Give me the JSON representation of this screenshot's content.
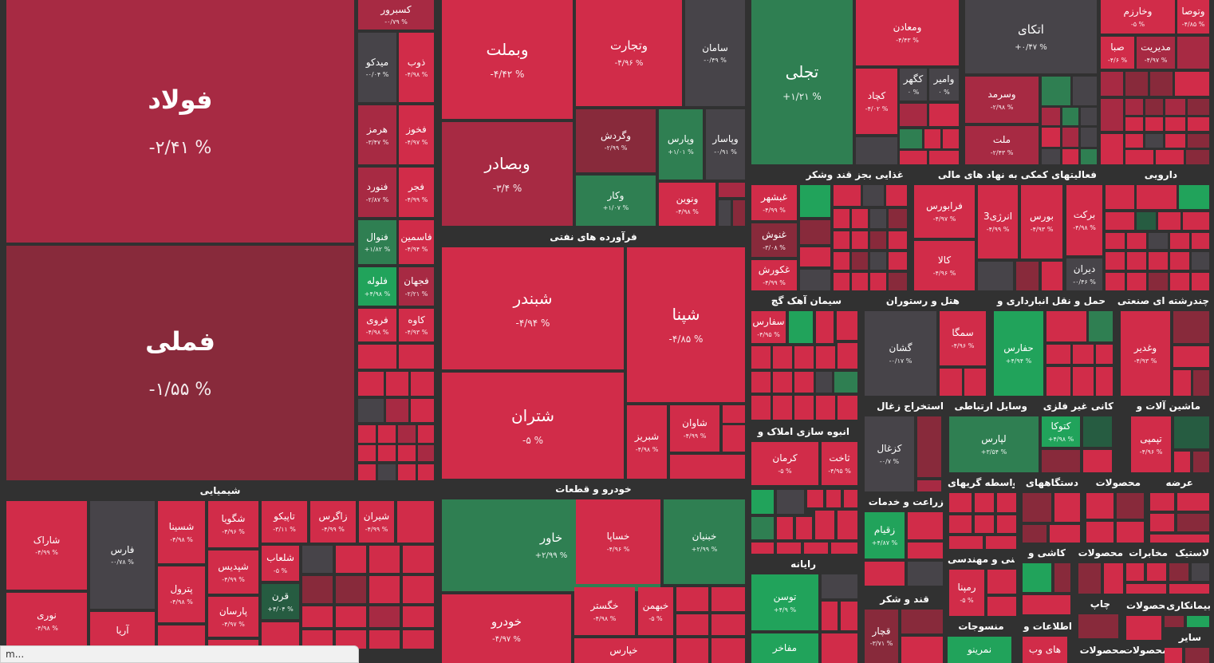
{
  "sectors": {
    "metals": "",
    "chemicals": "شیمیایی",
    "refinery": "فرآورده های نفتی",
    "auto": "خودرو و قطعات",
    "food": "غذایی بجز قند وشکر",
    "financial": "فعالیتهای کمکی به نهاد های مالی",
    "pharma": "دارویی",
    "cement": "سیمان آهک گچ",
    "hotel": "هتل و رستوران",
    "transport": "حمل و نقل انبارداری و",
    "multi": "چندرشته ای صنعتی",
    "mining_coal": "استخراج زغال",
    "telecom": "وسایل ارتباطی",
    "nonmetal": "کانی غیر فلزی",
    "machinery": "ماشین آلات و",
    "construction": "انبوه سازی املاک و",
    "agriculture": "زراعت و خدمات",
    "brokers": "واسطه گریهای",
    "devices": "دستگاههای",
    "products_a": "محصولات",
    "supply": "عرضه",
    "computer": "رایانه",
    "engineering": "فنی و مهندسی",
    "tiles": "کاشی و",
    "products_b": "محصولات",
    "comm": "مخابرات",
    "plastic": "لاستیک",
    "sugar": "قند و شکر",
    "textile": "منسوجات",
    "info": "اطلاعات و",
    "print": "چاپ",
    "products_c": "محصولات",
    "medical": "بیمانکاری",
    "products_d": "محصولات",
    "products_e": "محصولات",
    "other": "سایر"
  },
  "tiles": {
    "folad": {
      "name": "فولاد",
      "pct": "-۲/۴۱ %"
    },
    "fameli": {
      "name": "فملی",
      "pct": "-۱/۵۵ %"
    },
    "kasbarvar": {
      "name": "کسبرور",
      "pct": "-۰/۷۹ %"
    },
    "mideko": {
      "name": "میدکو",
      "pct": "-۰/۰۴ %"
    },
    "zob": {
      "name": "ذوب",
      "pct": "-۴/۹۸ %"
    },
    "hormoz": {
      "name": "هرمز",
      "pct": "-۳/۴۷ %"
    },
    "fakhuz": {
      "name": "فخوز",
      "pct": "-۴/۹۷ %"
    },
    "fanvard": {
      "name": "فنورد",
      "pct": "-۲/۸۷ %"
    },
    "fajr": {
      "name": "فجر",
      "pct": "-۴/۹۹ %"
    },
    "fanval": {
      "name": "فنوال",
      "pct": "+۱/۸۲ %"
    },
    "fasmin": {
      "name": "فاسمین",
      "pct": "-۴/۹۴ %"
    },
    "falule": {
      "name": "فلوله",
      "pct": "+۴/۹۸ %"
    },
    "fajahan": {
      "name": "فجهان",
      "pct": "-۲/۲۱ %"
    },
    "farvi": {
      "name": "فروی",
      "pct": "-۴/۹۸ %"
    },
    "kave": {
      "name": "کاوه",
      "pct": "-۴/۹۳ %"
    },
    "vabemellat": {
      "name": "وبملت",
      "pct": "-۴/۴۲ %"
    },
    "vatejarat": {
      "name": "وتجارت",
      "pct": "-۴/۹۶ %"
    },
    "saman": {
      "name": "سامان",
      "pct": "-۰/۴۹ %"
    },
    "tajalli": {
      "name": "تجلی",
      "pct": "+۱/۲۱ %"
    },
    "vabsader": {
      "name": "وبصادر",
      "pct": "-۳/۴ %"
    },
    "vagardesh": {
      "name": "وگردش",
      "pct": "-۲/۹۹ %"
    },
    "vapars": {
      "name": "وپارس",
      "pct": "+۱/۰۱ %"
    },
    "vapasar": {
      "name": "وپاسار",
      "pct": "-۰/۹۱ %"
    },
    "vakar": {
      "name": "وکار",
      "pct": "+۱/۰۷ %"
    },
    "vanovin": {
      "name": "ونوین",
      "pct": "-۴/۹۸ %"
    },
    "vamaaden": {
      "name": "ومعادن",
      "pct": "-۴/۴۳ %"
    },
    "atkay": {
      "name": "اتکای",
      "pct": "+۰/۴۷ %"
    },
    "vakharazm": {
      "name": "وخارزم",
      "pct": "-۵ %"
    },
    "vatusa": {
      "name": "وتوصا",
      "pct": "-۴/۸۵ %"
    },
    "seba": {
      "name": "صبا",
      "pct": "-۴/۶ %"
    },
    "modiriyat": {
      "name": "مدیریت",
      "pct": "-۴/۹۷ %"
    },
    "kechad": {
      "name": "کچاد",
      "pct": "-۴/۰۲ %"
    },
    "kegohar": {
      "name": "کگهر",
      "pct": "۰ %"
    },
    "vamir": {
      "name": "وامیر",
      "pct": "۰ %"
    },
    "vasormad": {
      "name": "وسرمد",
      "pct": "-۲/۹۸ %"
    },
    "mellat": {
      "name": "ملت",
      "pct": "-۲/۴۳ %"
    },
    "ghabshahr": {
      "name": "غبشهر",
      "pct": "-۴/۹۹ %"
    },
    "ghanush": {
      "name": "غنوش",
      "pct": "-۳/۰۸ %"
    },
    "ghakurosh": {
      "name": "غکورش",
      "pct": "-۴/۹۹ %"
    },
    "farabourse": {
      "name": "فرابورس",
      "pct": "-۴/۹۷ %"
    },
    "energy3": {
      "name": "انرژی3",
      "pct": "-۴/۹۹ %"
    },
    "bourse": {
      "name": "بورس",
      "pct": "-۴/۹۳ %"
    },
    "kala": {
      "name": "کالا",
      "pct": "-۴/۹۶ %"
    },
    "barkat": {
      "name": "برکت",
      "pct": "-۴/۹۸ %"
    },
    "diran": {
      "name": "دیران",
      "pct": "-۰/۴۶ %"
    },
    "shabandar": {
      "name": "شبندر",
      "pct": "-۴/۹۴ %"
    },
    "shapna": {
      "name": "شپنا",
      "pct": "-۴/۸۵ %"
    },
    "shatran": {
      "name": "شتران",
      "pct": "-۵ %"
    },
    "shavan": {
      "name": "شاوان",
      "pct": "-۴/۹۹ %"
    },
    "shabriz": {
      "name": "شبریز",
      "pct": "-۴/۹۸ %"
    },
    "safars": {
      "name": "سفارس",
      "pct": "-۴/۹۵ %"
    },
    "gashan": {
      "name": "گشان",
      "pct": "-۰/۱۷ %"
    },
    "semaga": {
      "name": "سمگا",
      "pct": "-۴/۹۶ %"
    },
    "hafaras": {
      "name": "حفارس",
      "pct": "+۴/۹۴ %"
    },
    "vaghadir": {
      "name": "وغدیر",
      "pct": "-۴/۹۳ %"
    },
    "kezghal": {
      "name": "کزغال",
      "pct": "-۰/۷ %"
    },
    "lapars": {
      "name": "لپارس",
      "pct": "+۳/۵۴ %"
    },
    "katuka": {
      "name": "کتوکا",
      "pct": "+۴/۹۸ %"
    },
    "tapmi": {
      "name": "تپمپی",
      "pct": "-۴/۹۶ %"
    },
    "kerman": {
      "name": "کرمان",
      "pct": "-۵ %"
    },
    "sakht": {
      "name": "ثاخت",
      "pct": "-۴/۹۵ %"
    },
    "zagheyam": {
      "name": "زقیام",
      "pct": "+۴/۸۷ %"
    },
    "rampana": {
      "name": "رمپنا",
      "pct": "-۵ %"
    },
    "tusan": {
      "name": "توسن",
      "pct": "+۴/۹ %"
    },
    "mafakher": {
      "name": "مفاخر",
      "pct": ""
    },
    "ghachar": {
      "name": "قچار",
      "pct": "-۳/۷۱ %"
    },
    "namrino": {
      "name": "نمرینو",
      "pct": ""
    },
    "hayeweb": {
      "name": "های وب",
      "pct": ""
    },
    "shaarak": {
      "name": "شاراک",
      "pct": "-۴/۹۹ %"
    },
    "fars": {
      "name": "فارس",
      "pct": "-۰/۷۸ %"
    },
    "shasina": {
      "name": "شسینا",
      "pct": "-۴/۹۸ %"
    },
    "shegooya": {
      "name": "شگویا",
      "pct": "-۴/۹۶ %"
    },
    "tapiko": {
      "name": "تاپیکو",
      "pct": "-۳/۱۱ %"
    },
    "zagros": {
      "name": "زاگرس",
      "pct": "-۴/۹۹ %"
    },
    "shiran": {
      "name": "شیران",
      "pct": "-۴/۹۹ %"
    },
    "shapadis": {
      "name": "شپدیس",
      "pct": "-۴/۹۹ %"
    },
    "petrol": {
      "name": "پترول",
      "pct": "-۴/۹۸ %"
    },
    "shalab": {
      "name": "شلعاب",
      "pct": "-۵ %"
    },
    "ghoran": {
      "name": "قرن",
      "pct": "+۴/۰۴ %"
    },
    "parsan": {
      "name": "پارسان",
      "pct": "-۴/۹۷ %"
    },
    "nouri": {
      "name": "نوری",
      "pct": "-۴/۹۸ %"
    },
    "aria": {
      "name": "آریا",
      "pct": ""
    },
    "khavar": {
      "name": "خاور",
      "pct": "+۲/۹۹ %"
    },
    "khasapa": {
      "name": "خساپا",
      "pct": "-۴/۹۶ %"
    },
    "khabnyan": {
      "name": "خبنیان",
      "pct": "+۲/۹۹ %"
    },
    "khegostar": {
      "name": "خگستر",
      "pct": "-۴/۹۸ %"
    },
    "khabahman": {
      "name": "خبهمن",
      "pct": "-۵ %"
    },
    "khodro": {
      "name": "خودرو",
      "pct": "-۴/۹۷ %"
    },
    "khapars": {
      "name": "خپارس",
      "pct": ""
    }
  },
  "status_bar": "m..."
}
